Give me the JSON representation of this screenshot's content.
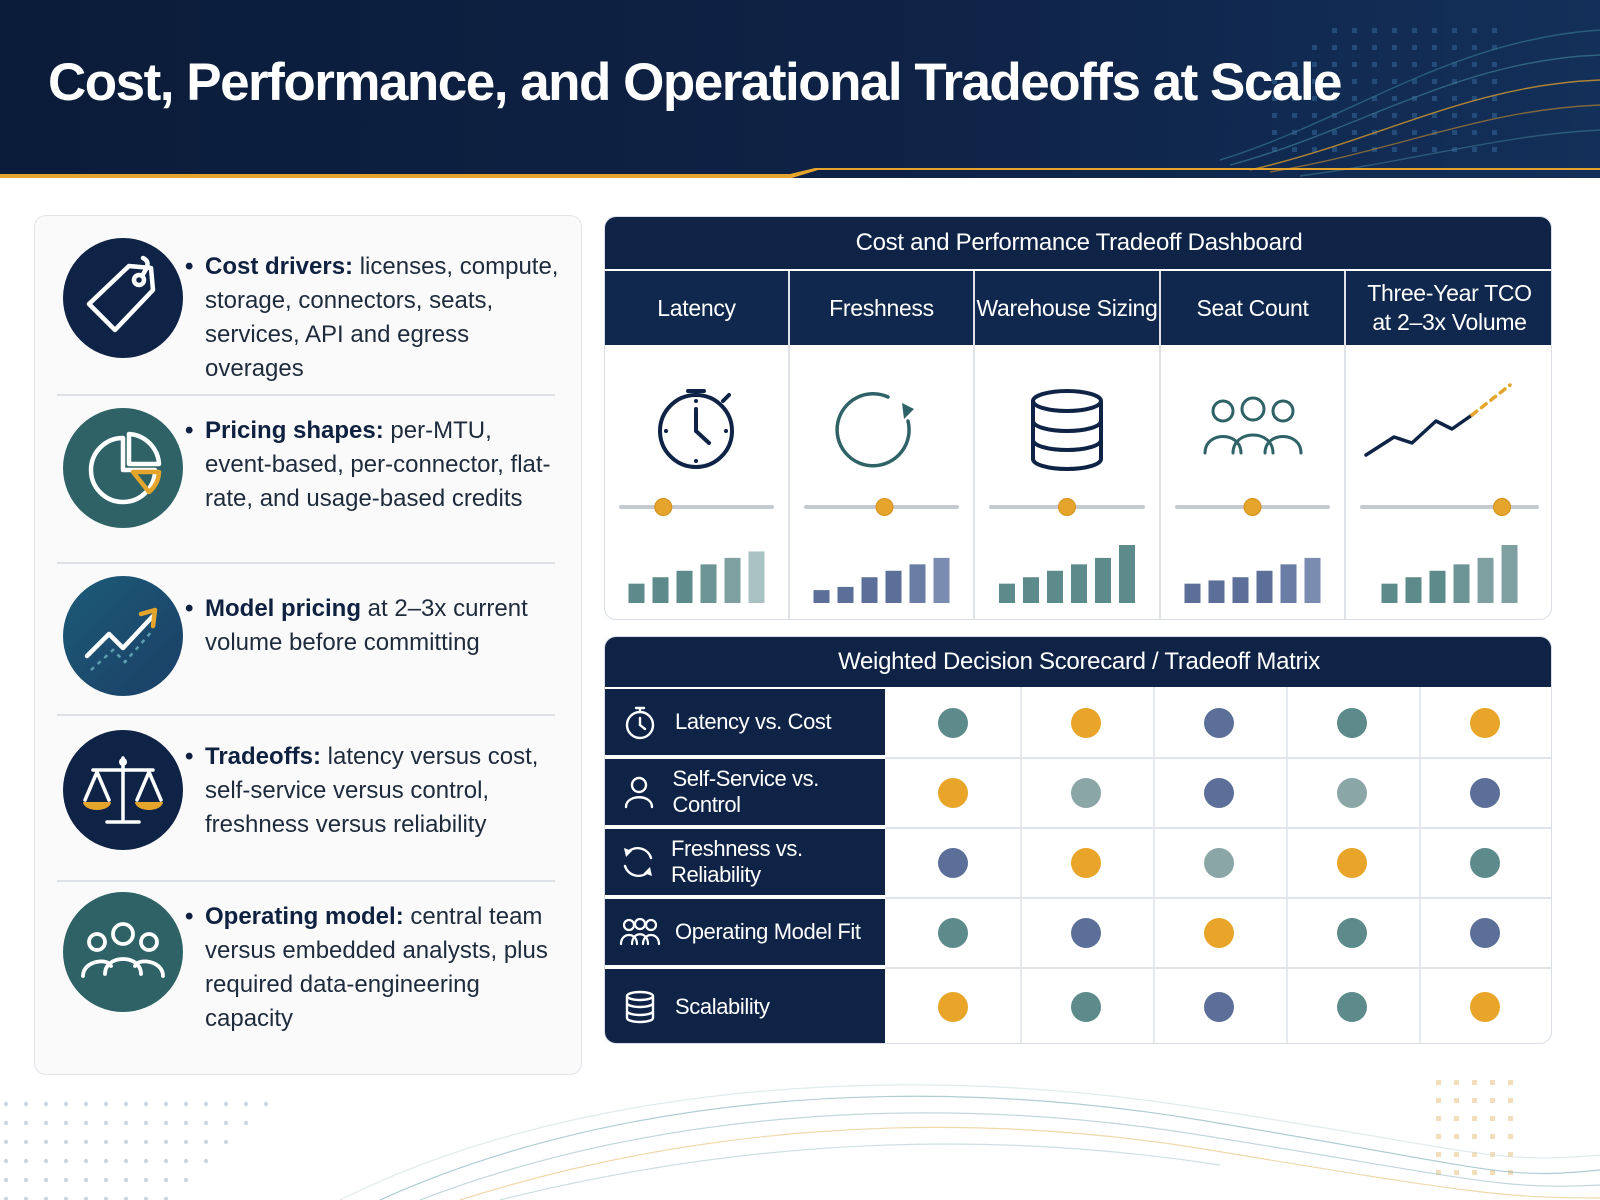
{
  "header": {
    "title": "Cost, Performance, and Operational Tradeoffs at Scale"
  },
  "colors": {
    "navy": "#0f2347",
    "teal": "#2e6266",
    "accent_orange": "#e5a52c",
    "dot_orange": "#e8a52a",
    "dot_teal": "#5d8a8b",
    "dot_blue": "#5b6f98",
    "dot_sage": "#8aa6a6"
  },
  "left_panel": {
    "items": [
      {
        "icon": "price-tag-icon",
        "head": "Cost drivers:",
        "body": " licenses, compute, storage, connectors, seats, services, API and egress overages"
      },
      {
        "icon": "pie-chart-icon",
        "head": "Pricing shapes:",
        "body": " per-MTU, event-based, per-connector, flat-rate, and usage-based credits"
      },
      {
        "icon": "trend-arrow-icon",
        "head": "Model pricing",
        "body": " at 2–3x current volume before committing"
      },
      {
        "icon": "balance-scale-icon",
        "head": "Tradeoffs:",
        "body": " latency versus cost, self-service versus control, freshness versus reliability"
      },
      {
        "icon": "team-people-icon",
        "head": "Operating model:",
        "body": " central team versus embedded analysts, plus required data-engineering capacity"
      }
    ]
  },
  "dashboard": {
    "title": "Cost and Performance Tradeoff Dashboard",
    "columns": [
      {
        "label": "Latency",
        "icon": "stopwatch-icon",
        "slider": 0.28,
        "bars": [
          3,
          4,
          5,
          6,
          7,
          8
        ]
      },
      {
        "label": "Freshness",
        "icon": "refresh-icon",
        "slider": 0.52,
        "bars": [
          2,
          2.5,
          4,
          5,
          6,
          7
        ]
      },
      {
        "label": "Warehouse Sizing",
        "icon": "database-icon",
        "slider": 0.5,
        "bars": [
          3,
          4,
          5,
          6,
          7,
          9
        ]
      },
      {
        "label": "Seat Count",
        "icon": "people-icon",
        "slider": 0.5,
        "bars": [
          3,
          3.5,
          4,
          5,
          6,
          7
        ]
      },
      {
        "label": "Three-Year TCO at 2–3x Volume",
        "icon": "growth-line-icon",
        "slider": 0.8,
        "bars": [
          3,
          4,
          5,
          6,
          7,
          9
        ]
      }
    ]
  },
  "matrix": {
    "title": "Weighted Decision Scorecard / Tradeoff Matrix",
    "rows": [
      {
        "label": "Latency vs. Cost",
        "icon": "stopwatch-icon",
        "dots": [
          "teal",
          "orange",
          "blue",
          "teal",
          "orange"
        ]
      },
      {
        "label": "Self-Service vs. Control",
        "icon": "person-icon",
        "dots": [
          "orange",
          "sage",
          "blue",
          "sage",
          "blue"
        ]
      },
      {
        "label": "Freshness vs. Reliability",
        "icon": "cycle-arrows-icon",
        "dots": [
          "blue",
          "orange",
          "sage",
          "orange",
          "teal"
        ]
      },
      {
        "label": "Operating Model Fit",
        "icon": "team-icon",
        "dots": [
          "teal",
          "blue",
          "orange",
          "teal",
          "blue"
        ]
      },
      {
        "label": "Scalability",
        "icon": "database-icon",
        "dots": [
          "orange",
          "teal",
          "blue",
          "teal",
          "orange"
        ]
      }
    ]
  }
}
